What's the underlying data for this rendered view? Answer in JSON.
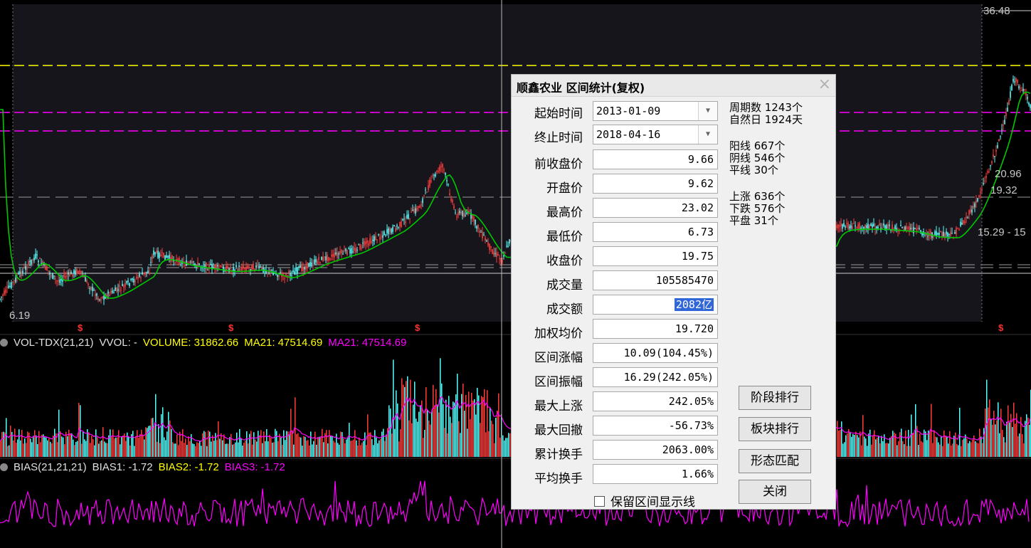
{
  "price_axis_labels": {
    "top_right": "36.48",
    "low_left": "6.19",
    "right_a": "20.96",
    "right_b": "19.32",
    "right_c": "15.29 - 15"
  },
  "volume_panel": {
    "indicator": "VOL-TDX(21,21)",
    "vvol": "VVOL: -",
    "volume": "VOLUME: 31862.66",
    "ma21": "MA21: 47514.69",
    "ma21b": "MA21: 47514.69"
  },
  "bias_panel": {
    "indicator": "BIAS(21,21,21)",
    "bias1": "BIAS1: -1.72",
    "bias2": "BIAS2: -1.72",
    "bias3": "BIAS3: -1.72"
  },
  "dialog": {
    "title": "顺鑫农业 区间统计(复权)",
    "close": "×",
    "start_label": "起始时间",
    "start_value": "2013-01-09",
    "end_label": "终止时间",
    "end_value": "2018-04-16",
    "fields": [
      {
        "label": "前收盘价",
        "value": "9.66"
      },
      {
        "label": "开盘价",
        "value": "9.62"
      },
      {
        "label": "最高价",
        "value": "23.02"
      },
      {
        "label": "最低价",
        "value": "6.73"
      },
      {
        "label": "收盘价",
        "value": "19.75"
      },
      {
        "label": "成交量",
        "value": "105585470"
      },
      {
        "label": "成交额",
        "value": "2082亿"
      },
      {
        "label": "加权均价",
        "value": "19.720"
      },
      {
        "label": "区间涨幅",
        "value": "10.09(104.45%)"
      },
      {
        "label": "区间振幅",
        "value": "16.29(242.05%)"
      },
      {
        "label": "最大上涨",
        "value": "242.05%"
      },
      {
        "label": "最大回撤",
        "value": "-56.73%"
      },
      {
        "label": "累计换手",
        "value": "2063.00%"
      },
      {
        "label": "平均换手",
        "value": "1.66%"
      }
    ],
    "stats": {
      "periods": "周期数 1243个",
      "natural_days": "自然日 1924天",
      "yang": "阳线 667个",
      "yin": "阴线 546个",
      "flat_line": "平线 30个",
      "up": "上涨 636个",
      "down": "下跌 576个",
      "flat": "平盘 31个"
    },
    "buttons": [
      "阶段排行",
      "板块排行",
      "形态匹配",
      "关闭"
    ],
    "checkbox_label": "保留区间显示线"
  },
  "colors": {
    "up": "#ff3c3c",
    "down": "#54ffff",
    "ma": "#00c800",
    "yellow": "#ffff00",
    "magenta": "#ff00ff"
  }
}
